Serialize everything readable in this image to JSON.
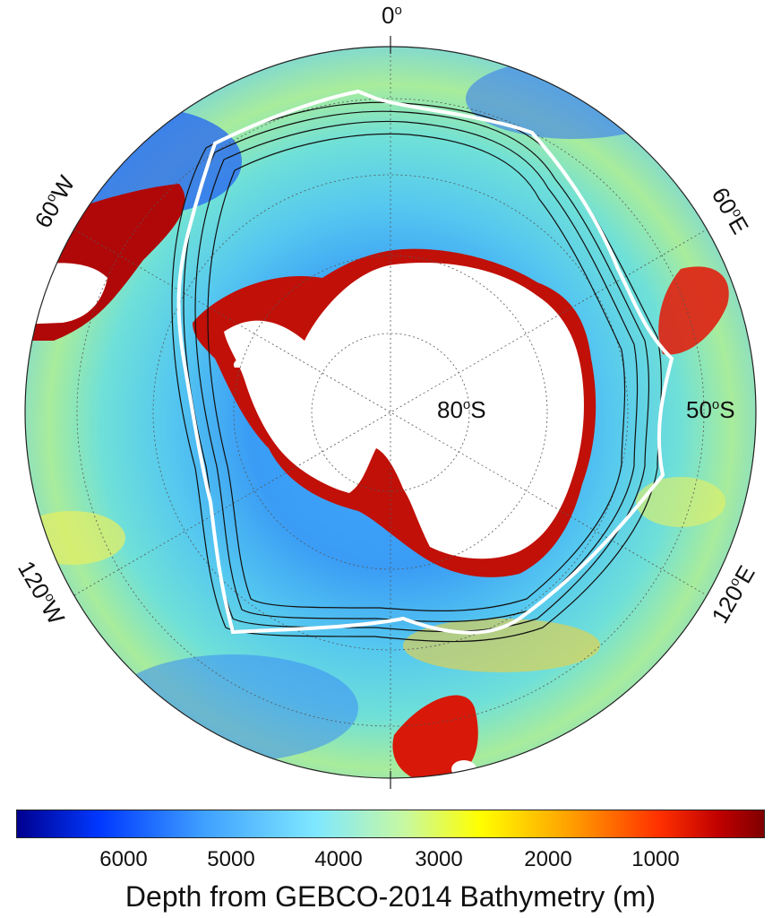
{
  "map": {
    "longitude_labels": {
      "lon_0": "0",
      "lon_60w": "60",
      "lon_60e": "60",
      "lon_120w": "120",
      "lon_120e": "120"
    },
    "longitude_suffix": {
      "west": "W",
      "east": "E"
    },
    "latitude_labels": {
      "lat_80s": "80",
      "lat_50s": "50"
    },
    "latitude_suffix": "S",
    "degree_symbol": "o",
    "ocean_colormap": "jet (blue = deep, dark red = shallow)",
    "land_color": "#ffffff",
    "front_line_color": "#ffffff",
    "contour_color": "#000000",
    "graticule": "dotted gray"
  },
  "colorbar": {
    "ticks": [
      "6000",
      "5000",
      "4000",
      "3000",
      "2000",
      "1000"
    ],
    "label": "Depth from GEBCO-2014 Bathymetry (m)",
    "colors": [
      "#00008f",
      "#0038ff",
      "#3fa0ff",
      "#7fe0ff",
      "#c8f8a0",
      "#ffff00",
      "#ffa000",
      "#ff3000",
      "#c00000",
      "#7f0000"
    ]
  }
}
